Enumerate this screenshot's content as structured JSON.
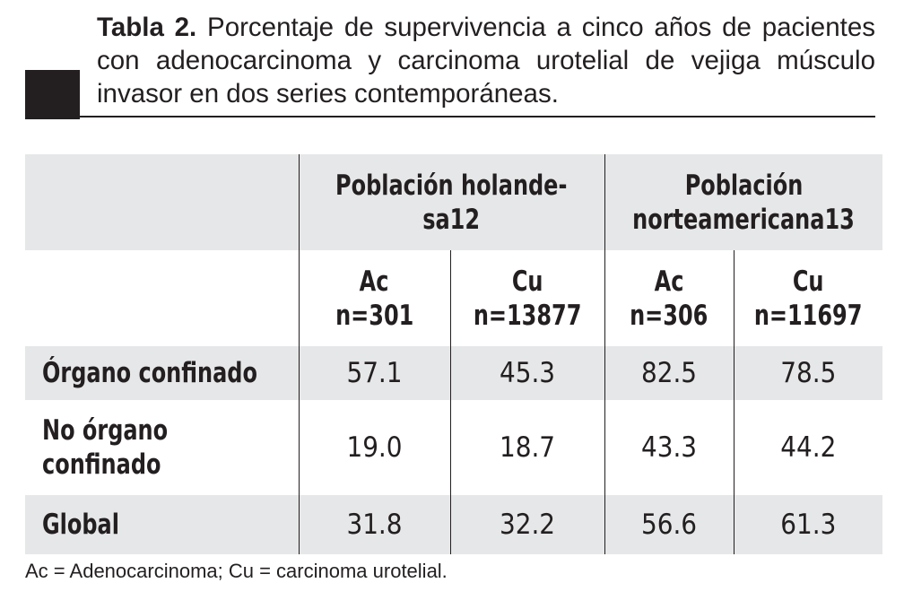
{
  "caption": {
    "label": "Tabla 2.",
    "text": "Porcentaje de supervivencia a cinco años de pacientes con adenocarcinoma y carcinoma urotelial de vejiga músculo invasor en dos series contemporáneas."
  },
  "table": {
    "groups": [
      {
        "line1": "Población holande-",
        "line2": "sa12"
      },
      {
        "line1": "Población",
        "line2": "norteamericana13"
      }
    ],
    "columns": [
      {
        "name": "Ac",
        "n": "n=301"
      },
      {
        "name": "Cu",
        "n": "n=13877"
      },
      {
        "name": "Ac",
        "n": "n=306"
      },
      {
        "name": "Cu",
        "n": "n=11697"
      }
    ],
    "rows": [
      {
        "label_line1": "Órgano confinado",
        "label_line2": "",
        "values": [
          "57.1",
          "45.3",
          "82.5",
          "78.5"
        ]
      },
      {
        "label_line1": "No órgano",
        "label_line2": "confinado",
        "values": [
          "19.0",
          "18.7",
          "43.3",
          "44.2"
        ]
      },
      {
        "label_line1": "Global",
        "label_line2": "",
        "values": [
          "31.8",
          "32.2",
          "56.6",
          "61.3"
        ]
      }
    ]
  },
  "footnote": "Ac = Adenocarcinoma; Cu = carcinoma urotelial."
}
